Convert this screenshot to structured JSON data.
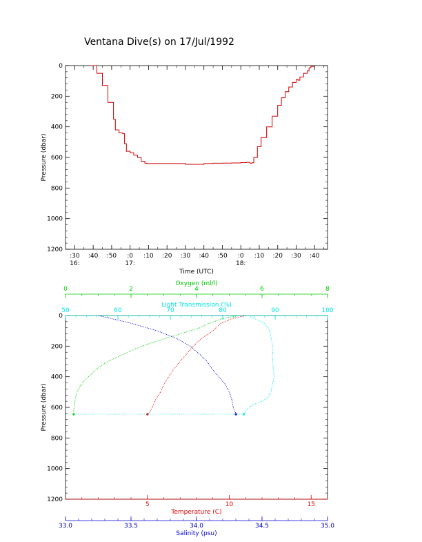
{
  "figure": {
    "title": "Ventana Dive(s) on 17/Jul/1992"
  },
  "colors": {
    "axis": "#000000",
    "depth_trace": "#cc0000",
    "oxygen": "#00cc00",
    "light": "#00e5e5",
    "temperature": "#dd0000",
    "salinity": "#0000cc"
  },
  "chart_data": [
    {
      "type": "line",
      "title": "Ventana Dive(s) on 17/Jul/1992",
      "xlabel": "Time (UTC)",
      "ylabel": "Pressure (dbar)",
      "xlim": [
        "16:30",
        "18:47"
      ],
      "ylim": [
        1200,
        0
      ],
      "y_inverted": true,
      "x_ticks": [
        ":30",
        ":40",
        ":50",
        ":0",
        ":10",
        ":20",
        ":30",
        ":40",
        ":50",
        ":0",
        ":10",
        ":20",
        ":30",
        ":40"
      ],
      "x_tick_minutes": [
        0,
        10,
        20,
        30,
        40,
        50,
        60,
        70,
        80,
        90,
        100,
        110,
        120,
        130
      ],
      "x_hour_labels": [
        {
          "label": "16:",
          "minute": 0
        },
        {
          "label": "17:",
          "minute": 30
        },
        {
          "label": "18:",
          "minute": 90
        }
      ],
      "y_ticks": [
        "0",
        "200",
        "400",
        "600",
        "800",
        "1000",
        "1200"
      ],
      "y_tick_values": [
        0,
        200,
        400,
        600,
        800,
        1000,
        1200
      ],
      "series": [
        {
          "color": "#cc0000",
          "x_minutes": [
            9,
            12,
            15,
            18,
            21,
            22,
            24,
            26,
            27,
            28,
            30,
            32,
            34,
            36,
            38,
            39,
            40,
            45,
            50,
            55,
            60,
            65,
            70,
            75,
            80,
            85,
            90,
            93,
            95,
            96,
            97,
            99,
            101,
            104,
            107,
            110,
            112,
            114,
            116,
            118,
            120,
            121,
            122,
            124,
            126,
            127,
            128,
            130
          ],
          "pressure_dbar": [
            0,
            50,
            130,
            240,
            350,
            420,
            440,
            445,
            510,
            560,
            570,
            585,
            600,
            625,
            638,
            640,
            640,
            640,
            640,
            640,
            645,
            645,
            640,
            638,
            637,
            636,
            634,
            632,
            638,
            635,
            600,
            530,
            470,
            400,
            330,
            260,
            210,
            170,
            140,
            110,
            90,
            95,
            75,
            50,
            35,
            15,
            5,
            0
          ]
        }
      ]
    },
    {
      "type": "scatter",
      "ylabel": "Pressure (dbar)",
      "ylim": [
        1200,
        0
      ],
      "y_inverted": true,
      "y_ticks": [
        "0",
        "200",
        "400",
        "600",
        "800",
        "1000",
        "1200"
      ],
      "y_tick_values": [
        0,
        200,
        400,
        600,
        800,
        1000,
        1200
      ],
      "axes": {
        "oxygen": {
          "label": "Oxygen (ml/l)",
          "range": [
            0,
            8
          ],
          "ticks": [
            "0",
            "2",
            "4",
            "6",
            "8"
          ],
          "tick_values": [
            0,
            2,
            4,
            6,
            8
          ],
          "color": "#00cc00"
        },
        "light": {
          "label": "Light Transmission (%)",
          "range": [
            50,
            100
          ],
          "ticks": [
            "50",
            "60",
            "70",
            "80",
            "90",
            "100"
          ],
          "tick_values": [
            50,
            60,
            70,
            80,
            90,
            100
          ],
          "color": "#00e5e5"
        },
        "temperature": {
          "label": "Temperature (C)",
          "range": [
            0,
            16
          ],
          "ticks": [
            "5",
            "10",
            "15"
          ],
          "tick_values": [
            5,
            10,
            15
          ],
          "color": "#dd0000"
        },
        "salinity": {
          "label": "Salinity (psu)",
          "range": [
            33.0,
            35.0
          ],
          "ticks": [
            "33.0",
            "33.5",
            "34.0",
            "34.5",
            "35.0"
          ],
          "tick_values": [
            33.0,
            33.5,
            34.0,
            34.5,
            35.0
          ],
          "color": "#0000cc"
        }
      },
      "series": [
        {
          "axis": "oxygen",
          "color": "#00cc00",
          "pressure": [
            0,
            20,
            50,
            80,
            100,
            140,
            180,
            220,
            260,
            300,
            340,
            380,
            420,
            460,
            500,
            540,
            580,
            620,
            645
          ],
          "values": [
            5.3,
            4.8,
            4.4,
            4.1,
            3.8,
            3.2,
            2.6,
            2.1,
            1.7,
            1.3,
            1.0,
            0.8,
            0.6,
            0.45,
            0.35,
            0.3,
            0.28,
            0.25,
            0.25
          ]
        },
        {
          "axis": "light",
          "color": "#00e5e5",
          "pressure": [
            0,
            20,
            50,
            100,
            200,
            300,
            400,
            450,
            500,
            540,
            560,
            580,
            600,
            620,
            640,
            645
          ],
          "values": [
            85,
            86,
            88,
            89,
            89.5,
            89.5,
            89.8,
            89.5,
            89.2,
            88.5,
            87.5,
            86,
            85,
            84.5,
            84,
            84
          ]
        },
        {
          "axis": "temperature",
          "color": "#dd0000",
          "pressure": [
            0,
            20,
            50,
            80,
            100,
            150,
            200,
            250,
            300,
            350,
            400,
            450,
            500,
            550,
            600,
            640,
            645
          ],
          "values": [
            11.0,
            10.2,
            9.5,
            9.2,
            9.0,
            8.3,
            7.8,
            7.4,
            7.0,
            6.6,
            6.3,
            6.0,
            5.8,
            5.5,
            5.3,
            5.1,
            5.0
          ]
        },
        {
          "axis": "salinity",
          "color": "#0000cc",
          "pressure": [
            0,
            20,
            50,
            100,
            150,
            200,
            250,
            300,
            350,
            400,
            450,
            500,
            550,
            600,
            640,
            645
          ],
          "values": [
            33.25,
            33.35,
            33.5,
            33.7,
            33.85,
            33.95,
            34.02,
            34.08,
            34.12,
            34.17,
            34.22,
            34.25,
            34.27,
            34.28,
            34.3,
            34.3
          ]
        }
      ]
    }
  ]
}
